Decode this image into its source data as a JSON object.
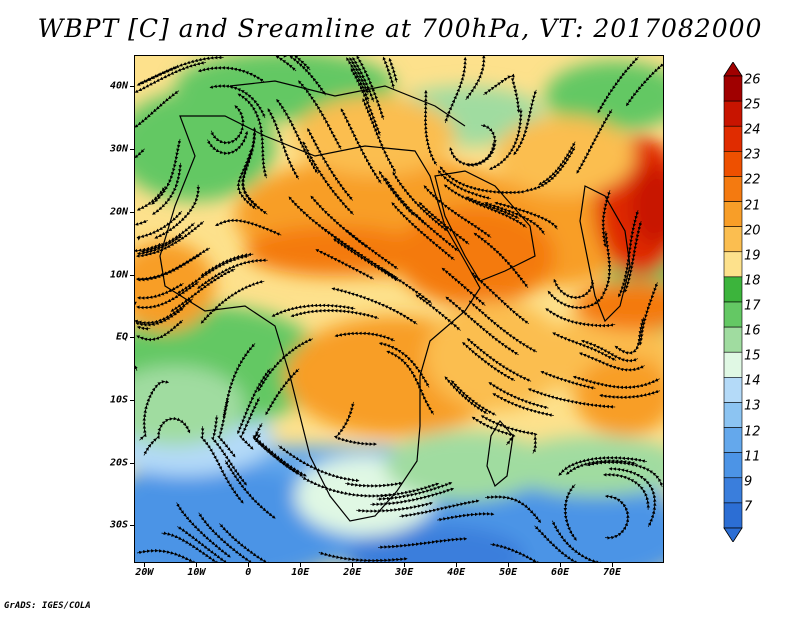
{
  "title": "WBPT [C] and Sreamline at 700hPa, VT: 2017082000",
  "credit": "GrADS: IGES/COLA",
  "map": {
    "lat_range": [
      -36,
      45
    ],
    "lon_range": [
      -22,
      80
    ],
    "lat_ticks": [
      {
        "label": "40N",
        "lat": 40
      },
      {
        "label": "30N",
        "lat": 30
      },
      {
        "label": "20N",
        "lat": 20
      },
      {
        "label": "10N",
        "lat": 10
      },
      {
        "label": "EQ",
        "lat": 0
      },
      {
        "label": "10S",
        "lat": -10
      },
      {
        "label": "20S",
        "lat": -20
      },
      {
        "label": "30S",
        "lat": -30
      }
    ],
    "lon_ticks": [
      {
        "label": "20W",
        "lon": -20
      },
      {
        "label": "10W",
        "lon": -10
      },
      {
        "label": "0",
        "lon": 0
      },
      {
        "label": "10E",
        "lon": 10
      },
      {
        "label": "20E",
        "lon": 20
      },
      {
        "label": "30E",
        "lon": 30
      },
      {
        "label": "40E",
        "lon": 40
      },
      {
        "label": "50E",
        "lon": 50
      },
      {
        "label": "60E",
        "lon": 60
      },
      {
        "label": "70E",
        "lon": 70
      }
    ]
  },
  "colorbar": {
    "levels": [
      "26",
      "25",
      "24",
      "23",
      "22",
      "21",
      "20",
      "19",
      "18",
      "17",
      "16",
      "15",
      "14",
      "13",
      "12",
      "11",
      "9",
      "7"
    ],
    "colors": [
      "#a00000",
      "#c81400",
      "#e02c00",
      "#ee5000",
      "#f47a10",
      "#f89e28",
      "#fbbe50",
      "#fde18c",
      "#3cb43c",
      "#64c864",
      "#a0dca0",
      "#e0f8e4",
      "#b4daf8",
      "#8cc4f2",
      "#64a8ec",
      "#4c94e6",
      "#3a7edc",
      "#2c6ed4"
    ]
  }
}
